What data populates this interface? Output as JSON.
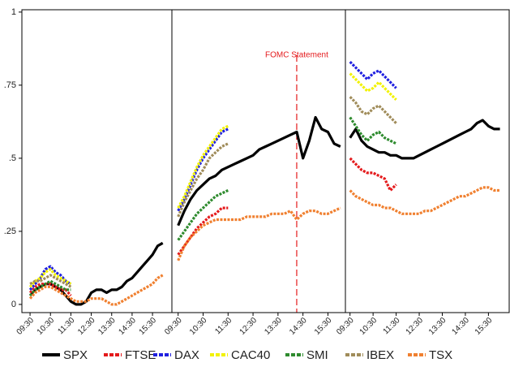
{
  "chart_data": [
    {
      "type": "line",
      "x": [
        9.5,
        9.75,
        10,
        10.25,
        10.5,
        10.75,
        11,
        11.25,
        11.5,
        11.75,
        12,
        12.25,
        12.5,
        12.75,
        13,
        13.25,
        13.5,
        13.75,
        14,
        14.25,
        14.5,
        14.75,
        15,
        15.25,
        15.5,
        15.75,
        16
      ],
      "xlim": [
        9.1,
        16.45
      ],
      "xticks": [
        {
          "value": 9.5,
          "label": "09:30"
        },
        {
          "value": 10.5,
          "label": "10:30"
        },
        {
          "value": 11.5,
          "label": "11:30"
        },
        {
          "value": 12.5,
          "label": "12:30"
        },
        {
          "value": 13.5,
          "label": "13:30"
        },
        {
          "value": 14.5,
          "label": "14:30"
        },
        {
          "value": 15.5,
          "label": "15:30"
        }
      ],
      "ylim": [
        -0.028,
        1.008
      ],
      "yticks": [
        0,
        {
          "value": 0.25,
          "label": ".25"
        },
        {
          "value": 0.5,
          "label": ".5"
        },
        {
          "value": 0.75,
          "label": ".75"
        },
        1
      ],
      "series": [
        {
          "name": "SPX",
          "color": "#000000",
          "linestyle": "solid",
          "values": [
            0.03,
            0.05,
            0.06,
            0.07,
            0.07,
            0.06,
            0.05,
            0.03,
            0.01,
            0.0,
            0.0,
            0.01,
            0.04,
            0.05,
            0.05,
            0.04,
            0.05,
            0.05,
            0.06,
            0.08,
            0.09,
            0.11,
            0.13,
            0.15,
            0.17,
            0.2,
            0.21
          ]
        },
        {
          "name": "FTSE",
          "color": "#e41a1c",
          "linestyle": "dashed",
          "values": [
            0.04,
            0.06,
            0.07,
            0.07,
            0.07,
            0.06,
            0.05,
            0.05,
            0.03,
            null,
            null,
            null,
            null,
            null,
            null,
            null,
            null,
            null,
            null,
            null,
            null,
            null,
            null,
            null,
            null,
            null,
            null
          ]
        },
        {
          "name": "DAX",
          "color": "#2020e0",
          "linestyle": "dashed",
          "values": [
            0.05,
            0.07,
            0.09,
            0.12,
            0.13,
            0.11,
            0.1,
            0.08,
            0.07,
            null,
            null,
            null,
            null,
            null,
            null,
            null,
            null,
            null,
            null,
            null,
            null,
            null,
            null,
            null,
            null,
            null,
            null
          ]
        },
        {
          "name": "CAC40",
          "color": "#f2f200",
          "linestyle": "dashed",
          "values": [
            0.06,
            0.08,
            0.09,
            0.11,
            0.12,
            0.1,
            0.09,
            0.08,
            0.07,
            null,
            null,
            null,
            null,
            null,
            null,
            null,
            null,
            null,
            null,
            null,
            null,
            null,
            null,
            null,
            null,
            null,
            null
          ]
        },
        {
          "name": "SMI",
          "color": "#2e8b2e",
          "linestyle": "dashed",
          "values": [
            0.03,
            0.05,
            0.06,
            0.07,
            0.08,
            0.07,
            0.06,
            0.05,
            0.05,
            null,
            null,
            null,
            null,
            null,
            null,
            null,
            null,
            null,
            null,
            null,
            null,
            null,
            null,
            null,
            null,
            null,
            null
          ]
        },
        {
          "name": "IBEX",
          "color": "#a08c5a",
          "linestyle": "dashed",
          "values": [
            0.07,
            0.08,
            0.08,
            0.09,
            0.1,
            0.09,
            0.08,
            0.07,
            0.06,
            null,
            null,
            null,
            null,
            null,
            null,
            null,
            null,
            null,
            null,
            null,
            null,
            null,
            null,
            null,
            null,
            null,
            null
          ]
        },
        {
          "name": "TSX",
          "color": "#f08030",
          "linestyle": "dashed",
          "values": [
            0.02,
            0.04,
            0.05,
            0.06,
            0.06,
            0.05,
            0.04,
            0.03,
            0.02,
            0.01,
            0.01,
            0.01,
            0.02,
            0.02,
            0.02,
            0.01,
            0.0,
            0.0,
            0.01,
            0.02,
            0.03,
            0.04,
            0.05,
            0.06,
            0.07,
            0.09,
            0.1
          ]
        }
      ]
    },
    {
      "type": "line",
      "x": [
        9.5,
        9.75,
        10,
        10.25,
        10.5,
        10.75,
        11,
        11.25,
        11.5,
        11.75,
        12,
        12.25,
        12.5,
        12.75,
        13,
        13.25,
        13.5,
        13.75,
        14,
        14.25,
        14.5,
        14.75,
        15,
        15.25,
        15.5,
        15.75,
        16
      ],
      "xlim": [
        9.25,
        16.2
      ],
      "xticks": [
        {
          "value": 9.5,
          "label": "09:30"
        },
        {
          "value": 10.5,
          "label": "10:30"
        },
        {
          "value": 11.5,
          "label": "11:30"
        },
        {
          "value": 12.5,
          "label": "12:30"
        },
        {
          "value": 13.5,
          "label": "13:30"
        },
        {
          "value": 14.5,
          "label": "14:30"
        },
        {
          "value": 15.5,
          "label": "15:30"
        }
      ],
      "ylim": [
        -0.028,
        1.008
      ],
      "annotations": [
        {
          "text": "FOMC Statement",
          "x": 14.25
        }
      ],
      "series": [
        {
          "name": "SPX",
          "color": "#000000",
          "linestyle": "solid",
          "values": [
            0.27,
            0.32,
            0.36,
            0.39,
            0.41,
            0.43,
            0.44,
            0.46,
            0.47,
            0.48,
            0.49,
            0.5,
            0.51,
            0.53,
            0.54,
            0.55,
            0.56,
            0.57,
            0.58,
            0.59,
            0.5,
            0.56,
            0.64,
            0.6,
            0.59,
            0.55,
            0.54
          ]
        },
        {
          "name": "FTSE",
          "color": "#e41a1c",
          "linestyle": "dashed",
          "values": [
            0.17,
            0.2,
            0.23,
            0.26,
            0.28,
            0.3,
            0.31,
            0.33,
            0.33,
            null,
            null,
            null,
            null,
            null,
            null,
            null,
            null,
            null,
            null,
            null,
            null,
            null,
            null,
            null,
            null,
            null,
            null
          ]
        },
        {
          "name": "DAX",
          "color": "#2020e0",
          "linestyle": "dashed",
          "values": [
            0.32,
            0.36,
            0.41,
            0.46,
            0.5,
            0.53,
            0.56,
            0.59,
            0.6,
            null,
            null,
            null,
            null,
            null,
            null,
            null,
            null,
            null,
            null,
            null,
            null,
            null,
            null,
            null,
            null,
            null,
            null
          ]
        },
        {
          "name": "CAC40",
          "color": "#f2f200",
          "linestyle": "dashed",
          "values": [
            0.33,
            0.37,
            0.42,
            0.47,
            0.51,
            0.54,
            0.57,
            0.6,
            0.61,
            null,
            null,
            null,
            null,
            null,
            null,
            null,
            null,
            null,
            null,
            null,
            null,
            null,
            null,
            null,
            null,
            null,
            null
          ]
        },
        {
          "name": "SMI",
          "color": "#2e8b2e",
          "linestyle": "dashed",
          "values": [
            0.22,
            0.25,
            0.28,
            0.31,
            0.33,
            0.35,
            0.37,
            0.38,
            0.39,
            null,
            null,
            null,
            null,
            null,
            null,
            null,
            null,
            null,
            null,
            null,
            null,
            null,
            null,
            null,
            null,
            null,
            null
          ]
        },
        {
          "name": "IBEX",
          "color": "#a08c5a",
          "linestyle": "dashed",
          "values": [
            0.3,
            0.35,
            0.39,
            0.43,
            0.46,
            0.5,
            0.52,
            0.54,
            0.55,
            null,
            null,
            null,
            null,
            null,
            null,
            null,
            null,
            null,
            null,
            null,
            null,
            null,
            null,
            null,
            null,
            null,
            null
          ]
        },
        {
          "name": "TSX",
          "color": "#f08030",
          "linestyle": "dashed",
          "values": [
            0.15,
            0.2,
            0.23,
            0.25,
            0.27,
            0.28,
            0.29,
            0.29,
            0.29,
            0.29,
            0.29,
            0.3,
            0.3,
            0.3,
            0.3,
            0.31,
            0.31,
            0.31,
            0.32,
            0.29,
            0.31,
            0.32,
            0.32,
            0.31,
            0.31,
            0.32,
            0.33
          ]
        }
      ]
    },
    {
      "type": "line",
      "x": [
        9.5,
        9.75,
        10,
        10.25,
        10.5,
        10.75,
        11,
        11.25,
        11.5,
        11.75,
        12,
        12.25,
        12.5,
        12.75,
        13,
        13.25,
        13.5,
        13.75,
        14,
        14.25,
        14.5,
        14.75,
        15,
        15.25,
        15.5,
        15.75,
        16
      ],
      "xlim": [
        9.3,
        16.4
      ],
      "xticks": [
        {
          "value": 9.5,
          "label": "09:30"
        },
        {
          "value": 10.5,
          "label": "10:30"
        },
        {
          "value": 11.5,
          "label": "11:30"
        },
        {
          "value": 12.5,
          "label": "12:30"
        },
        {
          "value": 13.5,
          "label": "13:30"
        },
        {
          "value": 14.5,
          "label": "14:30"
        },
        {
          "value": 15.5,
          "label": "15:30"
        }
      ],
      "ylim": [
        -0.028,
        1.008
      ],
      "series": [
        {
          "name": "SPX",
          "color": "#000000",
          "linestyle": "solid",
          "values": [
            0.57,
            0.6,
            0.56,
            0.54,
            0.53,
            0.52,
            0.52,
            0.51,
            0.51,
            0.5,
            0.5,
            0.5,
            0.51,
            0.52,
            0.53,
            0.54,
            0.55,
            0.56,
            0.57,
            0.58,
            0.59,
            0.6,
            0.62,
            0.63,
            0.61,
            0.6,
            0.6
          ]
        },
        {
          "name": "FTSE",
          "color": "#e41a1c",
          "linestyle": "dashed",
          "values": [
            0.5,
            0.48,
            0.46,
            0.45,
            0.45,
            0.44,
            0.43,
            0.39,
            0.41,
            null,
            null,
            null,
            null,
            null,
            null,
            null,
            null,
            null,
            null,
            null,
            null,
            null,
            null,
            null,
            null,
            null,
            null
          ]
        },
        {
          "name": "DAX",
          "color": "#2020e0",
          "linestyle": "dashed",
          "values": [
            0.83,
            0.81,
            0.79,
            0.77,
            0.79,
            0.8,
            0.78,
            0.76,
            0.74,
            null,
            null,
            null,
            null,
            null,
            null,
            null,
            null,
            null,
            null,
            null,
            null,
            null,
            null,
            null,
            null,
            null,
            null
          ]
        },
        {
          "name": "CAC40",
          "color": "#f2f200",
          "linestyle": "dashed",
          "values": [
            0.79,
            0.77,
            0.75,
            0.73,
            0.74,
            0.76,
            0.74,
            0.72,
            0.7,
            null,
            null,
            null,
            null,
            null,
            null,
            null,
            null,
            null,
            null,
            null,
            null,
            null,
            null,
            null,
            null,
            null,
            null
          ]
        },
        {
          "name": "SMI",
          "color": "#2e8b2e",
          "linestyle": "dashed",
          "values": [
            0.64,
            0.61,
            0.58,
            0.56,
            0.58,
            0.59,
            0.57,
            0.56,
            0.55,
            null,
            null,
            null,
            null,
            null,
            null,
            null,
            null,
            null,
            null,
            null,
            null,
            null,
            null,
            null,
            null,
            null,
            null
          ]
        },
        {
          "name": "IBEX",
          "color": "#a08c5a",
          "linestyle": "dashed",
          "values": [
            0.71,
            0.69,
            0.66,
            0.65,
            0.67,
            0.68,
            0.66,
            0.64,
            0.62,
            null,
            null,
            null,
            null,
            null,
            null,
            null,
            null,
            null,
            null,
            null,
            null,
            null,
            null,
            null,
            null,
            null,
            null
          ]
        },
        {
          "name": "TSX",
          "color": "#f08030",
          "linestyle": "dashed",
          "values": [
            0.39,
            0.37,
            0.36,
            0.35,
            0.34,
            0.34,
            0.33,
            0.33,
            0.32,
            0.31,
            0.31,
            0.31,
            0.31,
            0.32,
            0.32,
            0.33,
            0.34,
            0.35,
            0.36,
            0.37,
            0.37,
            0.38,
            0.39,
            0.4,
            0.4,
            0.39,
            0.39
          ]
        }
      ]
    }
  ]
}
